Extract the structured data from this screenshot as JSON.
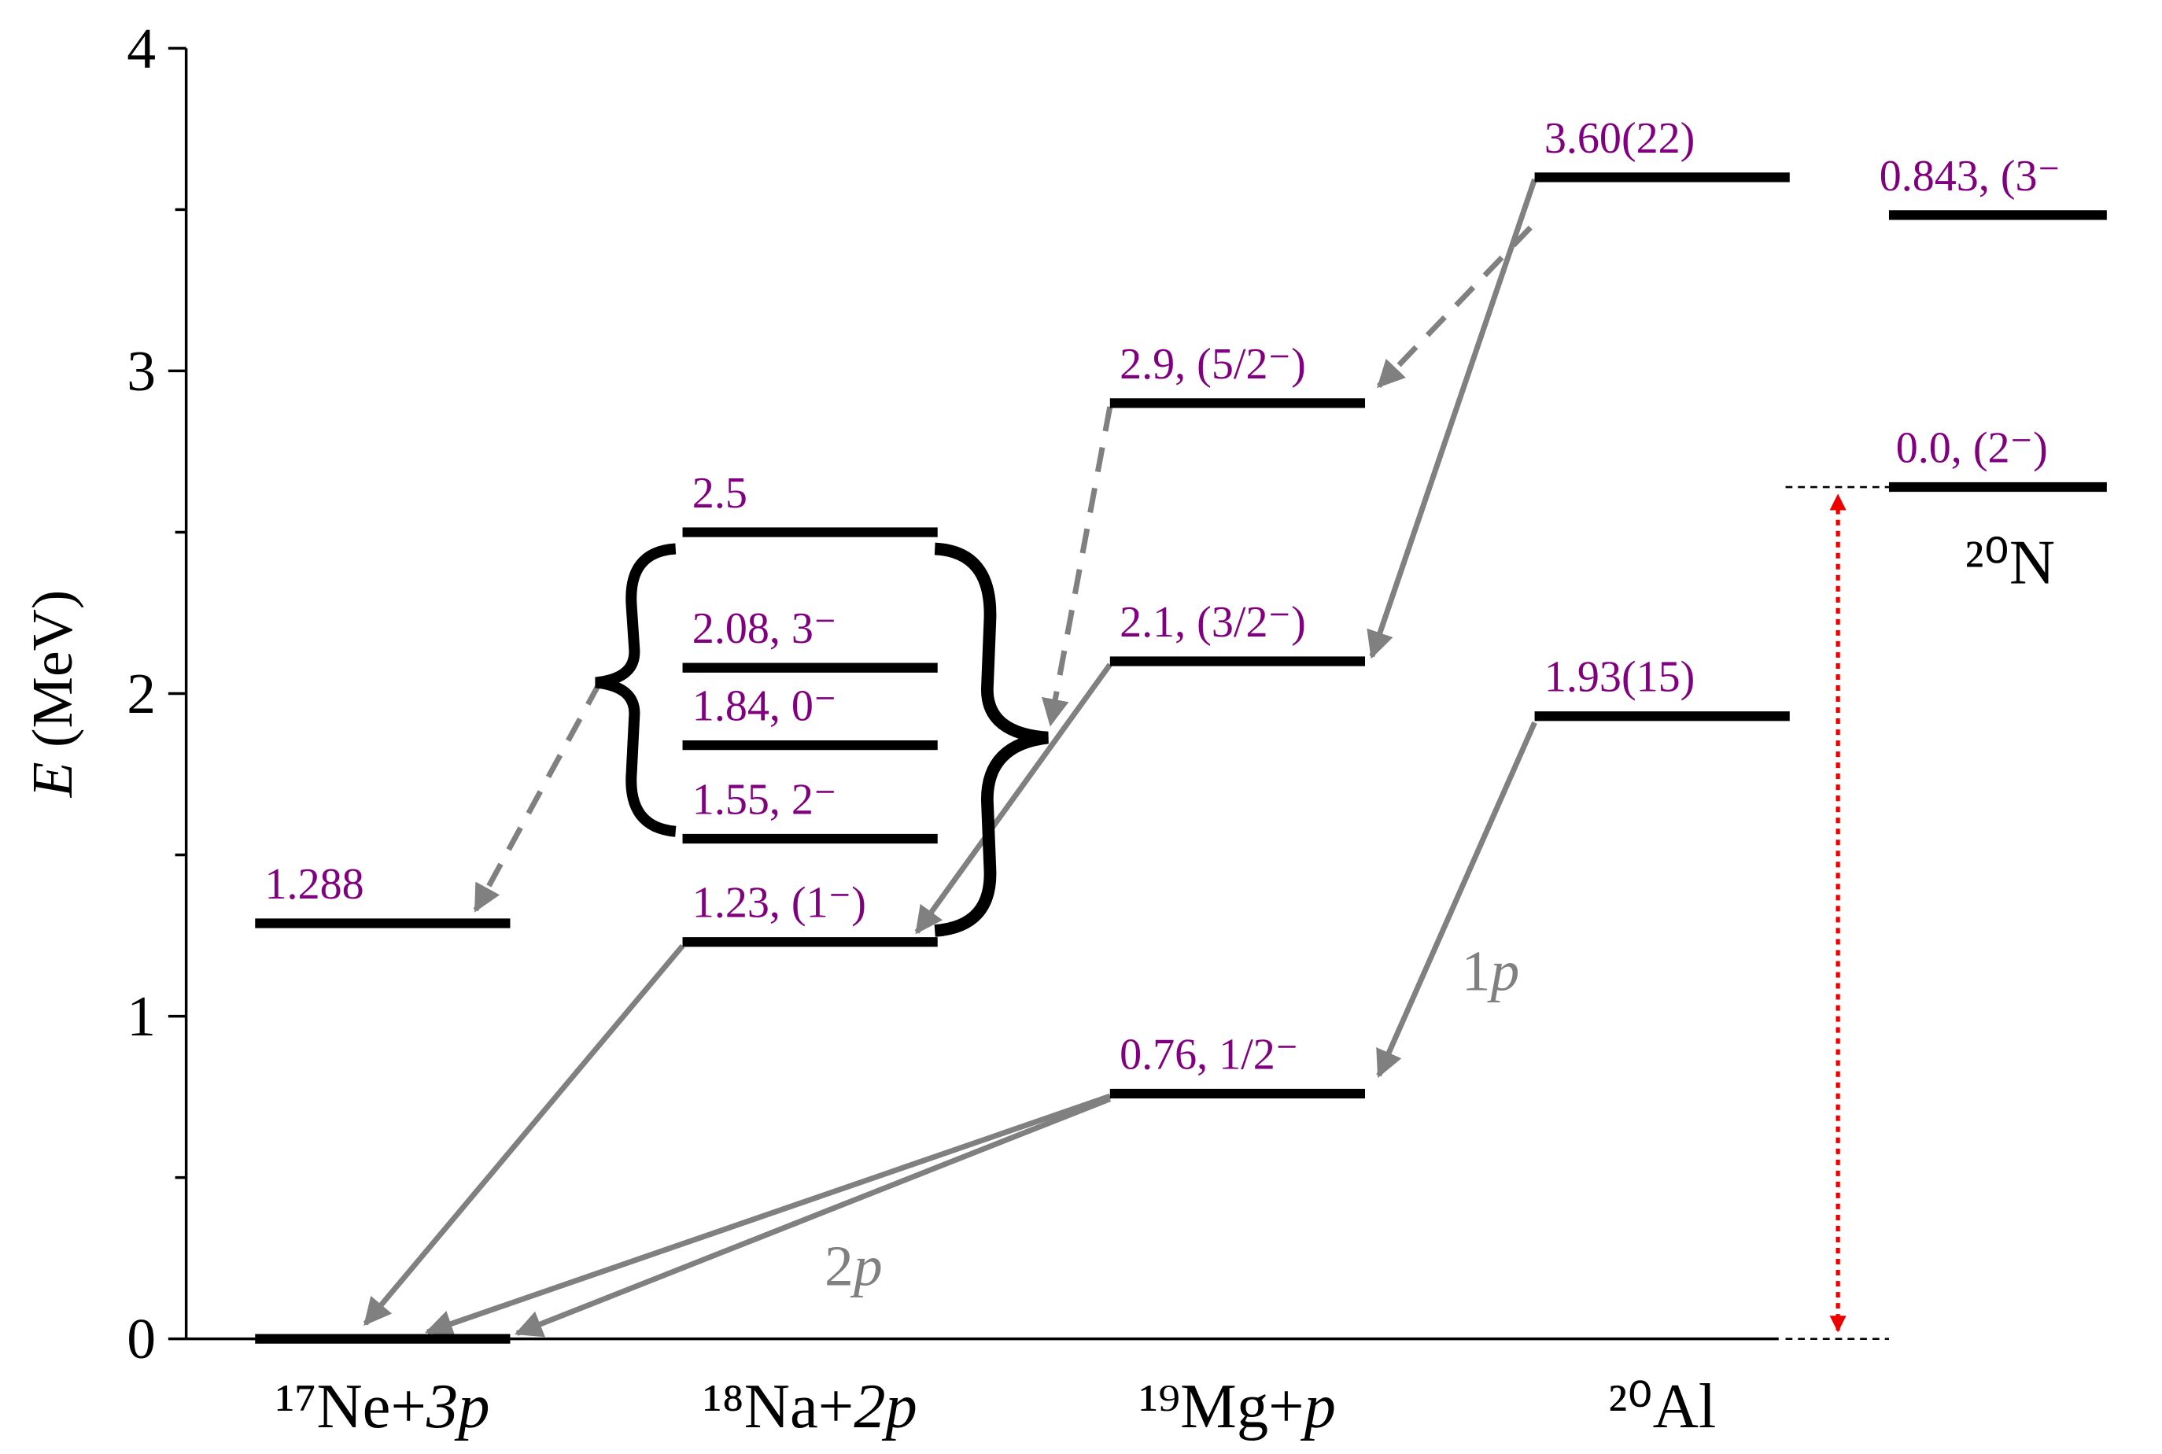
{
  "chart_data": {
    "type": "level-scheme",
    "ylabel": "E (MeV)",
    "ylim": [
      0,
      4
    ],
    "yticks": [
      0,
      1,
      2,
      3,
      4
    ],
    "yminorticks": [
      0.5,
      1.5,
      2.5,
      3.5
    ],
    "label_color": "#800080",
    "level_color": "#000000",
    "columns": [
      {
        "name": "¹⁷Ne+3p",
        "levels": [
          0,
          1.288
        ],
        "level_labels": [
          null,
          "1.288"
        ]
      },
      {
        "name": "¹⁸Na+2p",
        "levels": [
          1.23,
          1.55,
          1.84,
          2.08,
          2.5
        ],
        "level_labels": [
          "1.23, (1⁻)",
          "1.55, 2⁻",
          "1.84, 0⁻",
          "2.08, 3⁻",
          "2.5"
        ]
      },
      {
        "name": "¹⁹Mg+p",
        "levels": [
          0.76,
          2.1,
          2.9
        ],
        "level_labels": [
          "0.76, 1/2⁻",
          "2.1, (3/2⁻)",
          "2.9, (5/2⁻)"
        ]
      },
      {
        "name": "²⁰Al",
        "levels": [
          1.93,
          3.6
        ],
        "level_labels": [
          "1.93(15)",
          "3.60(22)"
        ]
      }
    ],
    "reference": {
      "name": "²⁰N",
      "offset": 2.64,
      "levels": [
        0.0,
        0.843
      ],
      "level_labels": [
        "0.0, (2⁻)",
        "0.843, (3⁻"
      ]
    },
    "annotations": [
      "1p",
      "2p"
    ]
  }
}
